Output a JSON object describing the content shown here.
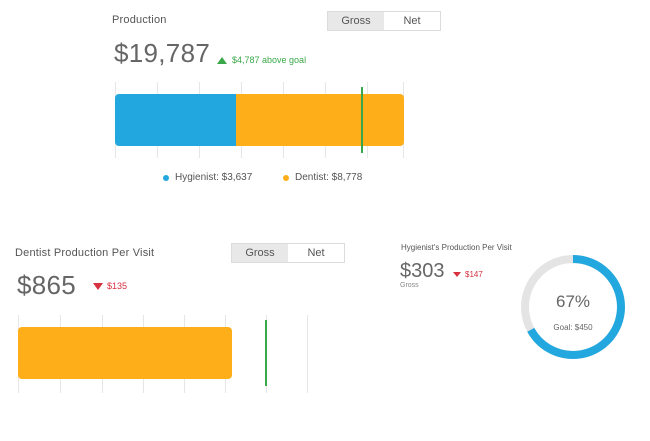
{
  "colors": {
    "hygienist": "#22a7de",
    "dentist": "#fdae18",
    "goal": "#3aa84a",
    "negative": "#d7303e",
    "ring_track": "#e4e4e4"
  },
  "production": {
    "title": "Production",
    "toggle": {
      "gross": "Gross",
      "net": "Net",
      "selected": "gross"
    },
    "value": "$19,787",
    "delta": "$4,787 above goal",
    "delta_direction": "up",
    "legend": [
      {
        "label": "Hygienist: $3,637",
        "color": "#22a7de"
      },
      {
        "label": "Dentist: $8,778",
        "color": "#fdae18"
      }
    ]
  },
  "dentist_ppv": {
    "title": "Dentist Production Per Visit",
    "toggle": {
      "gross": "Gross",
      "net": "Net",
      "selected": "gross"
    },
    "value": "$865",
    "delta": "$135",
    "delta_direction": "down"
  },
  "hygienist_ppv": {
    "title": "Hygienist's Production Per Visit",
    "value": "$303",
    "delta": "$147",
    "delta_direction": "down",
    "sublabel": "Gross",
    "percent_text": "67%",
    "percent": 0.67,
    "goal_text": "Goal: $450"
  }
}
